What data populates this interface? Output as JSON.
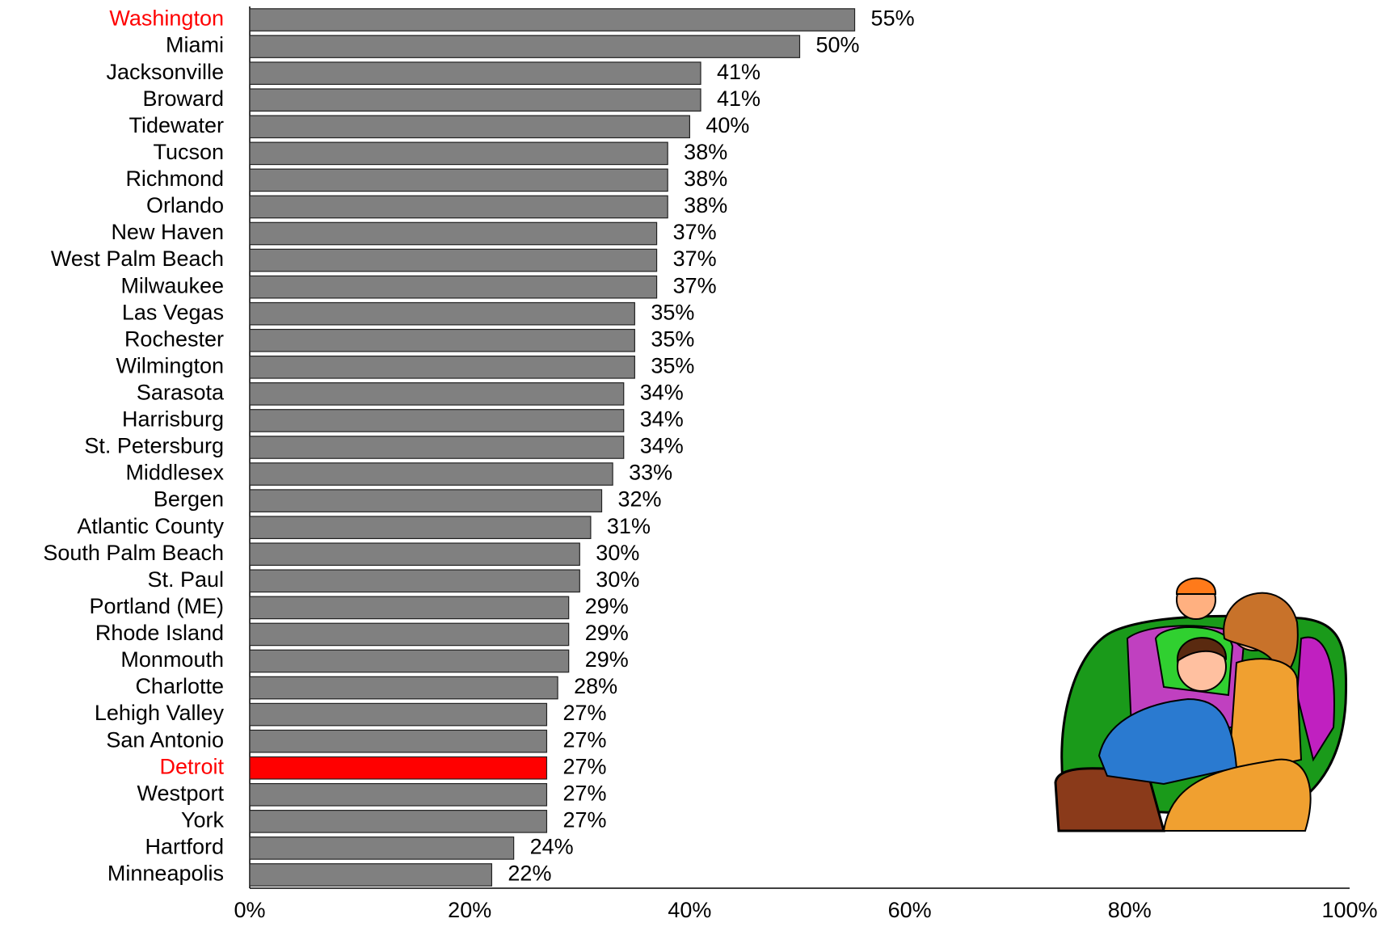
{
  "chart_data": {
    "type": "bar",
    "orientation": "horizontal",
    "categories": [
      "Washington",
      "Miami",
      "Jacksonville",
      "Broward",
      "Tidewater",
      "Tucson",
      "Richmond",
      "Orlando",
      "New Haven",
      "West Palm Beach",
      "Milwaukee",
      "Las Vegas",
      "Rochester",
      "Wilmington",
      "Sarasota",
      "Harrisburg",
      "St. Petersburg",
      "Middlesex",
      "Bergen",
      "Atlantic County",
      "South Palm Beach",
      "St. Paul",
      "Portland (ME)",
      "Rhode Island",
      "Monmouth",
      "Charlotte",
      "Lehigh Valley",
      "San Antonio",
      "Detroit",
      "Westport",
      "York",
      "Hartford",
      "Minneapolis"
    ],
    "values": [
      55,
      50,
      41,
      41,
      40,
      38,
      38,
      38,
      37,
      37,
      37,
      35,
      35,
      35,
      34,
      34,
      34,
      33,
      32,
      31,
      30,
      30,
      29,
      29,
      29,
      28,
      27,
      27,
      27,
      27,
      27,
      24,
      22
    ],
    "value_labels": [
      "55%",
      "50%",
      "41%",
      "41%",
      "40%",
      "38%",
      "38%",
      "38%",
      "37%",
      "37%",
      "37%",
      "35%",
      "35%",
      "35%",
      "34%",
      "34%",
      "34%",
      "33%",
      "32%",
      "31%",
      "30%",
      "30%",
      "29%",
      "29%",
      "29%",
      "28%",
      "27%",
      "27%",
      "27%",
      "27%",
      "27%",
      "24%",
      "22%"
    ],
    "bar_colors": [
      "#808080",
      "#808080",
      "#808080",
      "#808080",
      "#808080",
      "#808080",
      "#808080",
      "#808080",
      "#808080",
      "#808080",
      "#808080",
      "#808080",
      "#808080",
      "#808080",
      "#808080",
      "#808080",
      "#808080",
      "#808080",
      "#808080",
      "#808080",
      "#808080",
      "#808080",
      "#808080",
      "#808080",
      "#808080",
      "#808080",
      "#808080",
      "#808080",
      "#ff0000",
      "#808080",
      "#808080",
      "#808080",
      "#808080"
    ],
    "label_colors": [
      "#ff0000",
      "#000000",
      "#000000",
      "#000000",
      "#000000",
      "#000000",
      "#000000",
      "#000000",
      "#000000",
      "#000000",
      "#000000",
      "#000000",
      "#000000",
      "#000000",
      "#000000",
      "#000000",
      "#000000",
      "#000000",
      "#000000",
      "#000000",
      "#000000",
      "#000000",
      "#000000",
      "#000000",
      "#000000",
      "#000000",
      "#000000",
      "#000000",
      "#ff0000",
      "#000000",
      "#000000",
      "#000000",
      "#000000"
    ],
    "xlim": [
      0,
      100
    ],
    "xticks": [
      {
        "value": 0,
        "label": "0%"
      },
      {
        "value": 20,
        "label": "20%"
      },
      {
        "value": 40,
        "label": "40%"
      },
      {
        "value": 60,
        "label": "60%"
      },
      {
        "value": 80,
        "label": "80%"
      },
      {
        "value": 100,
        "label": "100%"
      }
    ],
    "grid": false
  }
}
